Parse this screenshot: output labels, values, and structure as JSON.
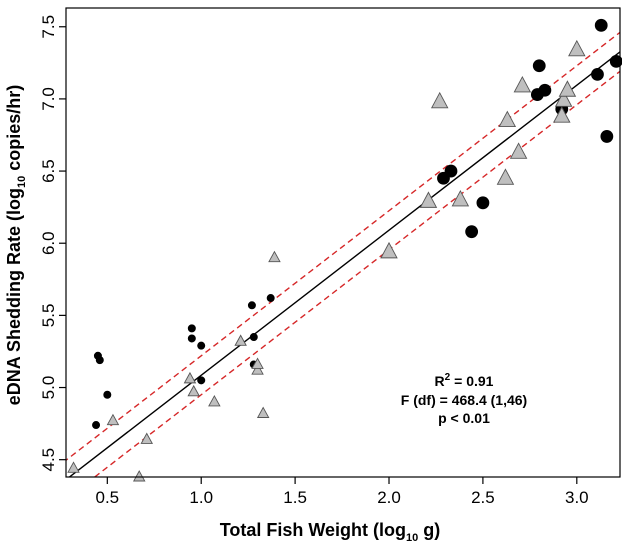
{
  "chart_data": {
    "type": "scatter",
    "title": "",
    "xlabel": "Total Fish Weight (log",
    "xlabel_sub": "10",
    "xlabel_tail": " g)",
    "ylabel": "eDNA Shedding Rate (log",
    "ylabel_sub": "10",
    "ylabel_tail": " copies/hr)",
    "xlim": [
      0.28,
      3.23
    ],
    "ylim": [
      4.38,
      7.63
    ],
    "x_ticks": [
      0.5,
      1.0,
      1.5,
      2.0,
      2.5,
      3.0
    ],
    "x_tick_labels": [
      "0.5",
      "1.0",
      "1.5",
      "2.0",
      "2.5",
      "3.0"
    ],
    "y_ticks": [
      4.5,
      5.0,
      5.5,
      6.0,
      6.5,
      7.0,
      7.5
    ],
    "y_tick_labels": [
      "4.5",
      "5.0",
      "5.5",
      "6.0",
      "6.5",
      "7.0",
      "7.5"
    ],
    "grid": false,
    "series": [
      {
        "marker": "small-circle",
        "color": "#000000",
        "points": [
          [
            0.45,
            5.22
          ],
          [
            0.46,
            5.19
          ],
          [
            0.44,
            4.74
          ],
          [
            0.5,
            4.95
          ],
          [
            0.95,
            5.41
          ],
          [
            0.95,
            5.34
          ],
          [
            1.0,
            5.29
          ],
          [
            1.0,
            5.05
          ],
          [
            1.27,
            5.57
          ],
          [
            1.28,
            5.35
          ],
          [
            1.28,
            5.16
          ],
          [
            1.37,
            5.62
          ]
        ]
      },
      {
        "marker": "small-triangle",
        "color": "#bfbfbf",
        "points": [
          [
            0.32,
            4.44
          ],
          [
            0.53,
            4.77
          ],
          [
            0.67,
            4.38
          ],
          [
            0.71,
            4.64
          ],
          [
            0.94,
            5.06
          ],
          [
            0.96,
            4.97
          ],
          [
            1.07,
            4.9
          ],
          [
            1.21,
            5.32
          ],
          [
            1.3,
            5.12
          ],
          [
            1.3,
            5.16
          ],
          [
            1.33,
            4.82
          ],
          [
            1.39,
            5.9
          ]
        ]
      },
      {
        "marker": "large-circle",
        "color": "#000000",
        "points": [
          [
            2.29,
            6.45
          ],
          [
            2.33,
            6.5
          ],
          [
            2.44,
            6.08
          ],
          [
            2.5,
            6.28
          ],
          [
            2.79,
            7.03
          ],
          [
            2.8,
            7.23
          ],
          [
            2.83,
            7.06
          ],
          [
            2.92,
            6.93
          ],
          [
            3.11,
            7.17
          ],
          [
            3.13,
            7.51
          ],
          [
            3.16,
            6.74
          ],
          [
            3.21,
            7.26
          ]
        ]
      },
      {
        "marker": "large-triangle",
        "color": "#bfbfbf",
        "points": [
          [
            2.0,
            5.94
          ],
          [
            2.21,
            6.29
          ],
          [
            2.27,
            6.98
          ],
          [
            2.38,
            6.3
          ],
          [
            2.62,
            6.45
          ],
          [
            2.63,
            6.85
          ],
          [
            2.69,
            6.63
          ],
          [
            2.71,
            7.09
          ],
          [
            2.92,
            6.88
          ],
          [
            2.93,
            6.99
          ],
          [
            2.95,
            7.06
          ],
          [
            3.0,
            7.34
          ]
        ]
      }
    ],
    "fit_line": {
      "slope": 1.005,
      "intercept": 4.08,
      "color": "#000000"
    },
    "confidence_band": {
      "offset": 0.135,
      "color": "#d62728",
      "style": "dashed"
    },
    "annotations": {
      "r2_base": "R",
      "r2_sup": "2",
      "r2_value": " = 0.91",
      "f_stat": "F (df) = 468.4 (1,46)",
      "p_value": "p < 0.01"
    }
  }
}
